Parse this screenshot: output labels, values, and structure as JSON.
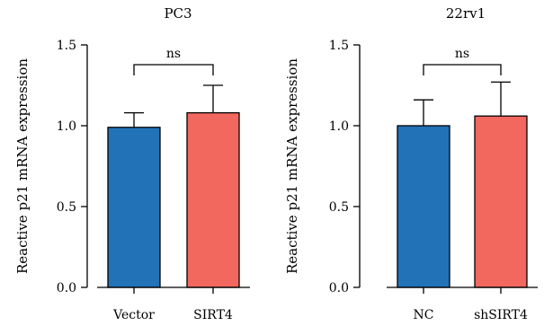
{
  "chart_data": [
    {
      "type": "bar",
      "title": "PC3",
      "ylabel": "Reactive p21 mRNA expression",
      "xlabel": "",
      "ylim": [
        0,
        1.5
      ],
      "yticks": [
        0.0,
        0.5,
        1.0,
        1.5
      ],
      "ytick_labels": [
        "0.0",
        "0.5",
        "1.0",
        "1.5"
      ],
      "categories": [
        "Vector",
        "SIRT4"
      ],
      "values": [
        0.99,
        1.08
      ],
      "error_upper": [
        1.08,
        1.25
      ],
      "colors": [
        "#2272b8",
        "#f2675e"
      ],
      "significance": {
        "from": 0,
        "to": 1,
        "label": "ns"
      }
    },
    {
      "type": "bar",
      "title": "22rv1",
      "ylabel": "Reactive p21 mRNA expression",
      "xlabel": "",
      "ylim": [
        0,
        1.5
      ],
      "yticks": [
        0.0,
        0.5,
        1.0,
        1.5
      ],
      "ytick_labels": [
        "0.0",
        "0.5",
        "1.0",
        "1.5"
      ],
      "categories": [
        "NC",
        "shSIRT4"
      ],
      "values": [
        1.0,
        1.06
      ],
      "error_upper": [
        1.16,
        1.27
      ],
      "colors": [
        "#2272b8",
        "#f2675e"
      ],
      "significance": {
        "from": 0,
        "to": 1,
        "label": "ns"
      }
    }
  ]
}
